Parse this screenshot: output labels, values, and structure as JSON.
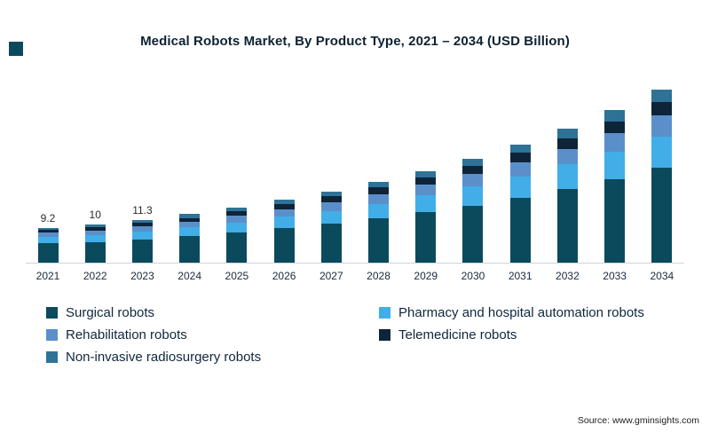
{
  "page": {
    "source": "Source: www.gminsights.com"
  },
  "chart_data": {
    "type": "bar",
    "stacked": true,
    "title": "Medical Robots Market, By Product Type, 2021 – 2034 (USD Billion)",
    "unit": "USD Billion",
    "xlabel": "",
    "ylabel": "",
    "ylim": [
      0,
      48
    ],
    "grid": false,
    "legend_position": "bottom",
    "categories": [
      "2021",
      "2022",
      "2023",
      "2024",
      "2025",
      "2026",
      "2027",
      "2028",
      "2029",
      "2030",
      "2031",
      "2032",
      "2033",
      "2034"
    ],
    "series": [
      {
        "name": "Surgical robots",
        "color": "#0b4a5c",
        "values": [
          5.1,
          5.5,
          6.2,
          7.0,
          8.0,
          9.1,
          10.3,
          11.7,
          13.3,
          15.1,
          17.2,
          19.5,
          22.1,
          25.1
        ]
      },
      {
        "name": "Pharmacy and hospital automation robots",
        "color": "#41aee8",
        "values": [
          1.7,
          1.8,
          2.0,
          2.3,
          2.6,
          3.0,
          3.4,
          3.8,
          4.4,
          5.0,
          5.6,
          6.4,
          7.2,
          8.2
        ]
      },
      {
        "name": "Rehabilitation robots",
        "color": "#5b8fc9",
        "values": [
          1.1,
          1.2,
          1.4,
          1.5,
          1.8,
          2.0,
          2.3,
          2.6,
          2.9,
          3.3,
          3.7,
          4.2,
          4.8,
          5.5
        ]
      },
      {
        "name": "Telemedicine robots",
        "color": "#0e2438",
        "values": [
          0.7,
          0.8,
          0.9,
          1.0,
          1.2,
          1.3,
          1.5,
          1.7,
          1.9,
          2.2,
          2.5,
          2.8,
          3.2,
          3.6
        ]
      },
      {
        "name": "Non-invasive radiosurgery robots",
        "color": "#2e7296",
        "values": [
          0.6,
          0.7,
          0.8,
          1.0,
          1.0,
          1.2,
          1.3,
          1.5,
          1.7,
          1.9,
          2.2,
          2.5,
          2.9,
          3.2
        ]
      }
    ],
    "totals": [
      9.2,
      10,
      11.3,
      12.8,
      14.6,
      16.6,
      18.8,
      21.3,
      24.2,
      27.5,
      31.2,
      35.4,
      40.2,
      45.6
    ],
    "data_labels": {
      "2021": "9.2",
      "2022": "10",
      "2023": "11.3"
    }
  }
}
